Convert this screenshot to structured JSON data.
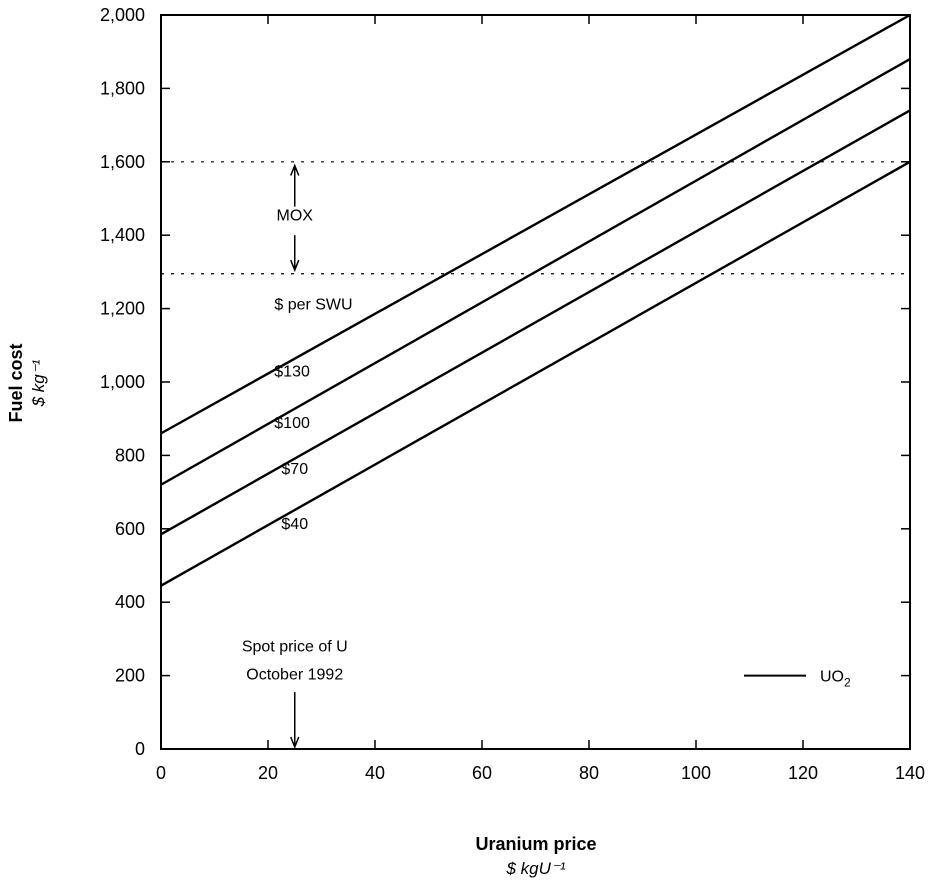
{
  "chart_data": {
    "type": "line",
    "xlabel": "Uranium price",
    "xunit": "$ kgU⁻¹",
    "ylabel": "Fuel cost",
    "yunit": "$ kg⁻¹",
    "xlim": [
      0,
      140
    ],
    "ylim": [
      0,
      2000
    ],
    "x_ticks": [
      0,
      20,
      40,
      60,
      80,
      100,
      120,
      140
    ],
    "y_ticks": [
      0,
      200,
      400,
      600,
      800,
      1000,
      1200,
      1400,
      1600,
      1800,
      2000
    ],
    "x_tick_labels": [
      "0",
      "20",
      "40",
      "60",
      "80",
      "100",
      "120",
      "140"
    ],
    "y_tick_labels": [
      "0",
      "200",
      "400",
      "600",
      "800",
      "1,000",
      "1,200",
      "1,400",
      "1,600",
      "1,800",
      "2,000"
    ],
    "grid": false,
    "legend": {
      "position": "bottom-right",
      "label": "UO",
      "label_sub": "2"
    },
    "series_group_label": "$ per SWU",
    "series": [
      {
        "label": "$130",
        "x": [
          0,
          140
        ],
        "y": [
          860,
          2000
        ]
      },
      {
        "label": "$100",
        "x": [
          0,
          140
        ],
        "y": [
          720,
          1880
        ]
      },
      {
        "label": "$70",
        "x": [
          0,
          140
        ],
        "y": [
          585,
          1740
        ]
      },
      {
        "label": "$40",
        "x": [
          0,
          140
        ],
        "y": [
          445,
          1600
        ]
      }
    ],
    "mox_band": {
      "label": "MOX",
      "low": 1295,
      "high": 1600
    },
    "spot_price": {
      "label_line1": "Spot price of U",
      "label_line2": "October 1992",
      "x": 25
    }
  }
}
